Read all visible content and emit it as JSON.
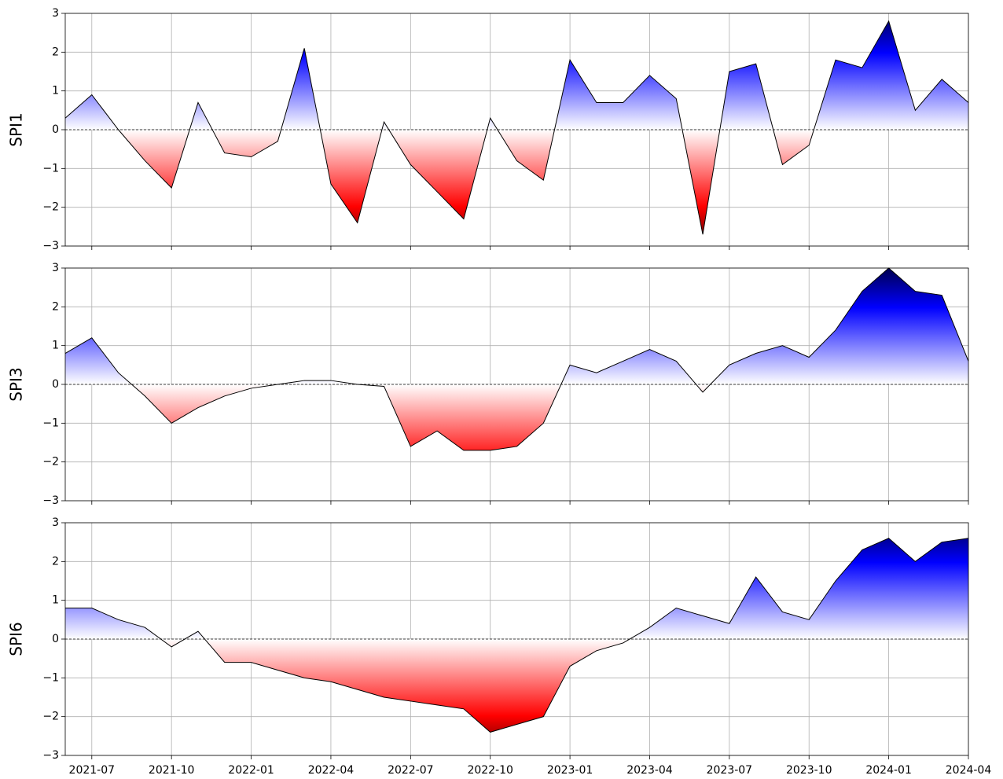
{
  "chart_data": [
    {
      "type": "area",
      "ylabel": "SPI1",
      "x": [
        "2021-06",
        "2021-07",
        "2021-08",
        "2021-09",
        "2021-10",
        "2021-11",
        "2021-12",
        "2022-01",
        "2022-02",
        "2022-03",
        "2022-04",
        "2022-05",
        "2022-06",
        "2022-07",
        "2022-08",
        "2022-09",
        "2022-10",
        "2022-11",
        "2022-12",
        "2023-01",
        "2023-02",
        "2023-03",
        "2023-04",
        "2023-05",
        "2023-06",
        "2023-07",
        "2023-08",
        "2023-09",
        "2023-10",
        "2023-11",
        "2023-12",
        "2024-01",
        "2024-02",
        "2024-03",
        "2024-04"
      ],
      "series": [
        {
          "name": "SPI1",
          "color": "#000000",
          "values": [
            0.3,
            0.9,
            0.0,
            -0.8,
            -1.5,
            0.7,
            -0.6,
            -0.7,
            -0.3,
            2.1,
            -1.4,
            -2.4,
            0.2,
            -0.9,
            -1.6,
            -2.3,
            0.3,
            -0.8,
            -1.3,
            1.8,
            0.7,
            0.7,
            1.4,
            0.8,
            -2.7,
            1.5,
            1.7,
            -0.9,
            -0.4,
            1.8,
            1.6,
            2.8,
            0.5,
            1.3,
            0.7
          ]
        }
      ],
      "xlim": [
        "2021-06",
        "2024-04"
      ],
      "ylim": [
        -3,
        3
      ],
      "yticks": [
        {
          "value": -3,
          "label": "−3"
        },
        {
          "value": -2,
          "label": "−2"
        },
        {
          "value": -1,
          "label": "−1"
        },
        0,
        1,
        2,
        3
      ],
      "grid": true
    },
    {
      "type": "area",
      "ylabel": "SPI3",
      "x": [
        "2021-06",
        "2021-07",
        "2021-08",
        "2021-09",
        "2021-10",
        "2021-11",
        "2021-12",
        "2022-01",
        "2022-02",
        "2022-03",
        "2022-04",
        "2022-05",
        "2022-06",
        "2022-07",
        "2022-08",
        "2022-09",
        "2022-10",
        "2022-11",
        "2022-12",
        "2023-01",
        "2023-02",
        "2023-03",
        "2023-04",
        "2023-05",
        "2023-06",
        "2023-07",
        "2023-08",
        "2023-09",
        "2023-10",
        "2023-11",
        "2023-12",
        "2024-01",
        "2024-02",
        "2024-03",
        "2024-04"
      ],
      "series": [
        {
          "name": "SPI3",
          "color": "#000000",
          "values": [
            0.8,
            1.2,
            0.3,
            -0.3,
            -1.0,
            -0.6,
            -0.3,
            -0.1,
            0.0,
            0.1,
            0.1,
            0.0,
            -0.05,
            -1.6,
            -1.2,
            -1.7,
            -1.7,
            -1.6,
            -1.0,
            0.5,
            0.3,
            0.6,
            0.9,
            0.6,
            -0.2,
            0.5,
            0.8,
            1.0,
            0.7,
            1.4,
            2.4,
            3.0,
            2.4,
            2.3,
            0.6
          ]
        }
      ],
      "xlim": [
        "2021-06",
        "2024-04"
      ],
      "ylim": [
        -3,
        3
      ],
      "yticks": [
        {
          "value": -3,
          "label": "−3"
        },
        {
          "value": -2,
          "label": "−2"
        },
        {
          "value": -1,
          "label": "−1"
        },
        0,
        1,
        2,
        3
      ],
      "grid": true
    },
    {
      "type": "area",
      "ylabel": "SPI6",
      "x": [
        "2021-06",
        "2021-07",
        "2021-08",
        "2021-09",
        "2021-10",
        "2021-11",
        "2021-12",
        "2022-01",
        "2022-02",
        "2022-03",
        "2022-04",
        "2022-05",
        "2022-06",
        "2022-07",
        "2022-08",
        "2022-09",
        "2022-10",
        "2022-11",
        "2022-12",
        "2023-01",
        "2023-02",
        "2023-03",
        "2023-04",
        "2023-05",
        "2023-06",
        "2023-07",
        "2023-08",
        "2023-09",
        "2023-10",
        "2023-11",
        "2023-12",
        "2024-01",
        "2024-02",
        "2024-03",
        "2024-04"
      ],
      "series": [
        {
          "name": "SPI6",
          "color": "#000000",
          "values": [
            0.8,
            0.8,
            0.5,
            0.3,
            -0.2,
            0.2,
            -0.6,
            -0.6,
            -0.8,
            -1.0,
            -1.1,
            -1.3,
            -1.5,
            -1.6,
            -1.7,
            -1.8,
            -2.4,
            -2.2,
            -2.0,
            -0.7,
            -0.3,
            -0.1,
            0.3,
            0.8,
            0.6,
            0.4,
            1.6,
            0.7,
            0.5,
            1.5,
            2.3,
            2.6,
            2.0,
            2.5,
            2.6
          ]
        }
      ],
      "xlim": [
        "2021-06",
        "2024-04"
      ],
      "ylim": [
        -3,
        3
      ],
      "yticks": [
        {
          "value": -3,
          "label": "−3"
        },
        {
          "value": -2,
          "label": "−2"
        },
        {
          "value": -1,
          "label": "−1"
        },
        0,
        1,
        2,
        3
      ],
      "grid": true,
      "xticks": [
        "2021-07",
        "2021-10",
        "2022-01",
        "2022-04",
        "2022-07",
        "2022-10",
        "2023-01",
        "2023-04",
        "2023-07",
        "2023-10",
        "2024-01",
        "2024-04"
      ]
    }
  ]
}
